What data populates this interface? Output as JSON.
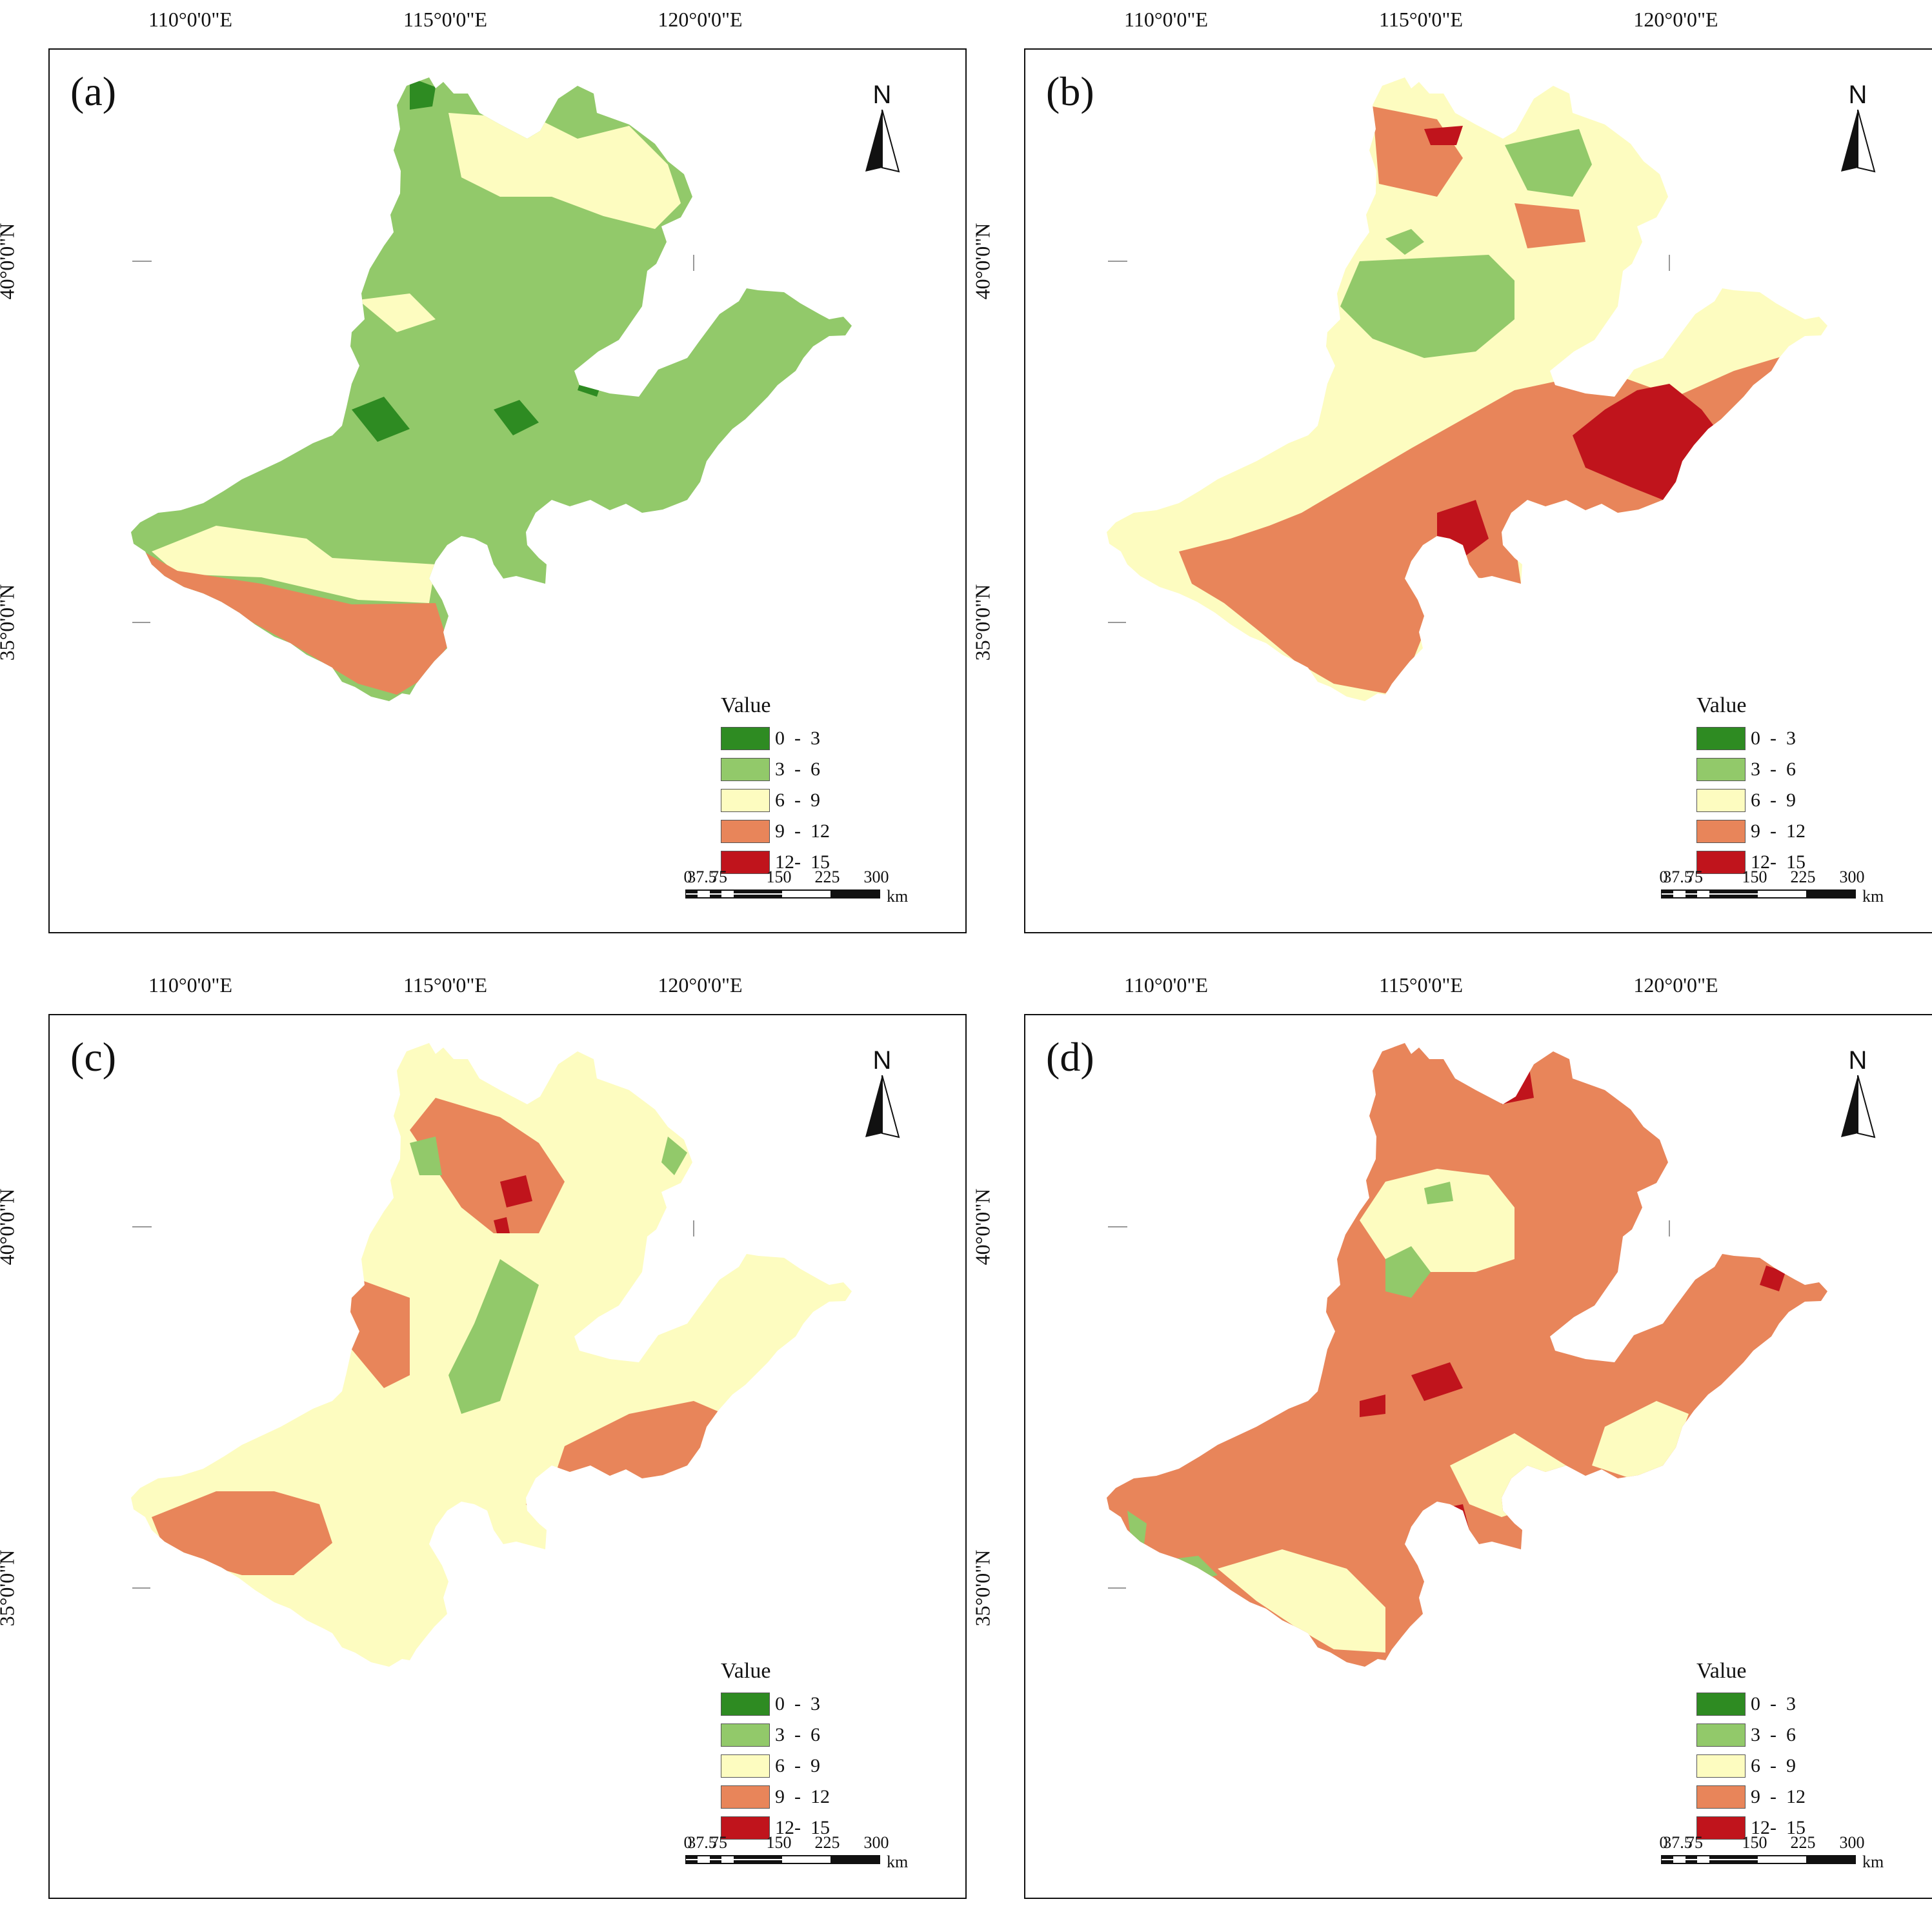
{
  "axes": {
    "lon_labels": [
      "110°0'0\"E",
      "115°0'0\"E",
      "120°0'0\"E"
    ],
    "lat_labels": [
      "40°0'0\"N",
      "35°0'0\"N"
    ]
  },
  "panels": [
    {
      "id": "a",
      "label": "(a)",
      "region_class": "3 - 6",
      "patch_classes": [
        "0 - 3",
        "6 - 9",
        "9 - 12"
      ]
    },
    {
      "id": "b",
      "label": "(b)",
      "region_class": "6 - 9",
      "patch_classes": [
        "3 - 6",
        "9 - 12",
        "12- 15"
      ]
    },
    {
      "id": "c",
      "label": "(c)",
      "region_class": "6 - 9",
      "patch_classes": [
        "9 - 12",
        "3 - 6",
        "12- 15"
      ]
    },
    {
      "id": "d",
      "label": "(d)",
      "region_class": "9 - 12",
      "patch_classes": [
        "6 - 9",
        "3 - 6",
        "12- 15"
      ]
    }
  ],
  "north_arrow": {
    "text": "N",
    "icon": "north-arrow-icon"
  },
  "legend": {
    "title": "Value",
    "items": [
      {
        "range": "0  -  3",
        "color": "#2e8b22"
      },
      {
        "range": "3  -  6",
        "color": "#92c96a"
      },
      {
        "range": "6  -  9",
        "color": "#fdfcc0"
      },
      {
        "range": "9  -  12",
        "color": "#e8855a"
      },
      {
        "range": "12-  15",
        "color": "#c0141c"
      }
    ]
  },
  "scale": {
    "ticks": [
      "0",
      "37.5",
      "75",
      "150",
      "225",
      "300"
    ],
    "units": "km"
  }
}
